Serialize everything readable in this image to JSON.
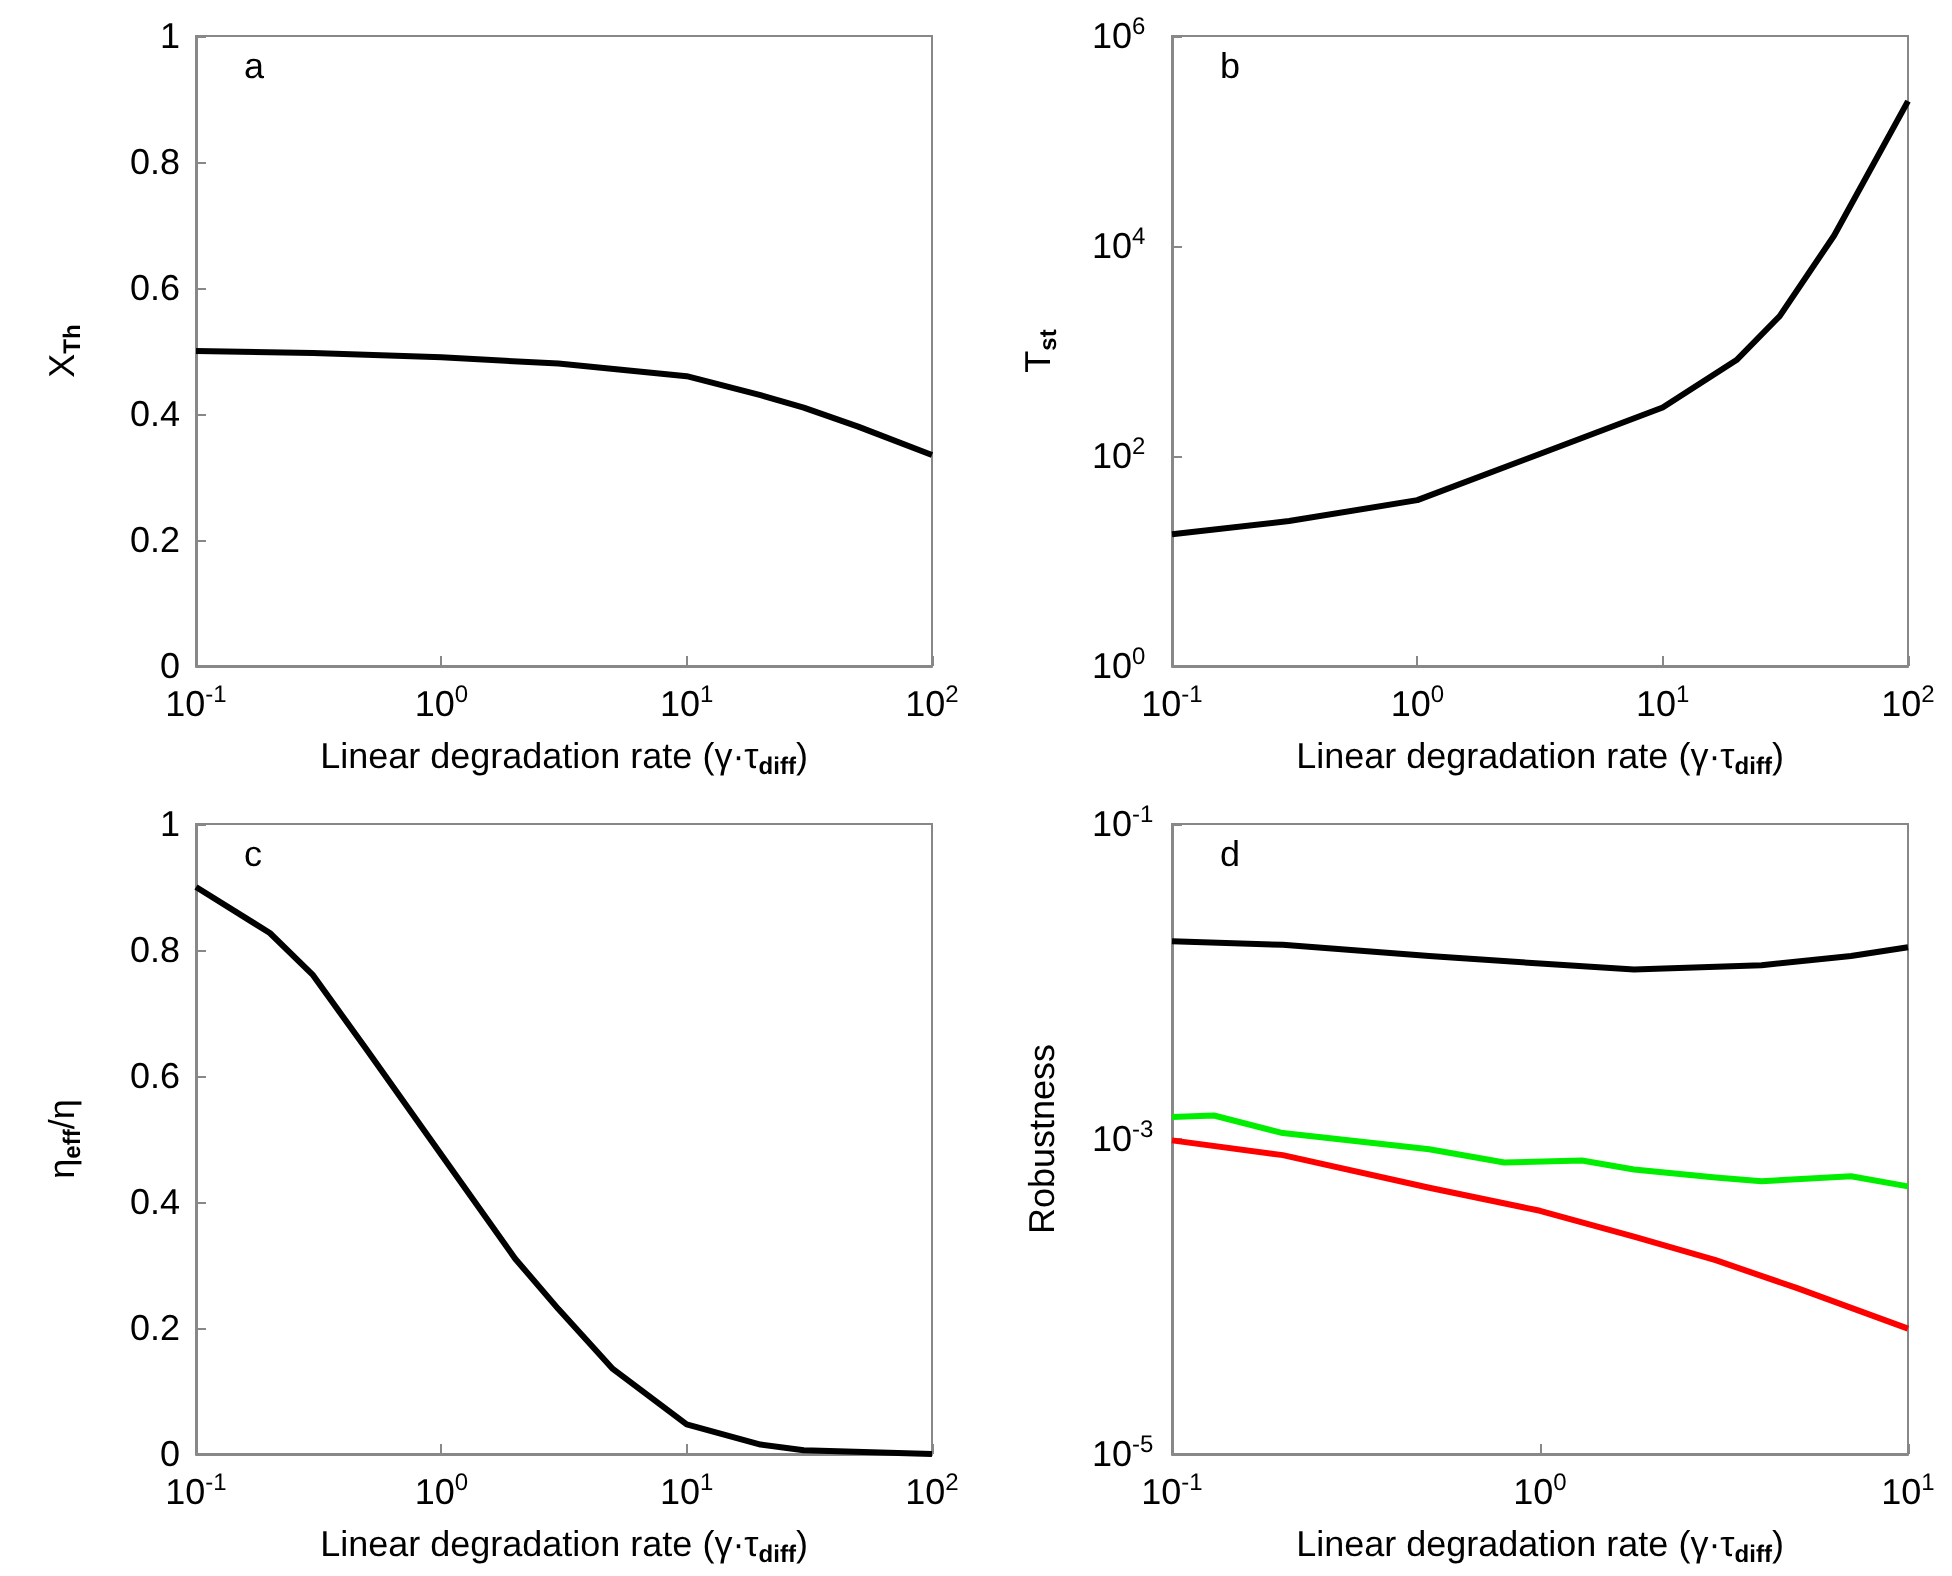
{
  "chart_data": [
    {
      "type": "line",
      "annotations": [
        "a"
      ],
      "xlabel": "Linear degradation rate (γ·τ$_{diff}$)",
      "ylabel": "X$_{Th}$",
      "log": "x",
      "marker": "none",
      "line_style": "solid",
      "xlim": [
        0.1,
        100
      ],
      "xticks": [
        {
          "value": 0.1,
          "label": "10$^{-1}$"
        },
        {
          "value": 1,
          "label": "10$^{0}$"
        },
        {
          "value": 10,
          "label": "10$^{1}$"
        },
        {
          "value": 100,
          "label": "10$^{2}$"
        }
      ],
      "ylim": [
        0,
        1
      ],
      "yticks": [
        0,
        0.2,
        0.4,
        0.6,
        0.8,
        1
      ],
      "x": [
        0.1,
        0.3,
        1,
        3,
        10,
        20,
        30,
        50,
        100
      ],
      "series": [
        {
          "color": "#000000",
          "values": [
            0.5,
            0.497,
            0.49,
            0.48,
            0.46,
            0.43,
            0.41,
            0.38,
            0.335
          ]
        }
      ]
    },
    {
      "type": "line",
      "annotations": [
        "b"
      ],
      "xlabel": "Linear degradation rate (γ·τ$_{diff}$)",
      "ylabel": "T$_{st}$",
      "log": "xy",
      "marker": "none",
      "line_style": "solid",
      "xlim": [
        0.1,
        100
      ],
      "xticks": [
        {
          "value": 0.1,
          "label": "10$^{-1}$"
        },
        {
          "value": 1,
          "label": "10$^{0}$"
        },
        {
          "value": 10,
          "label": "10$^{1}$"
        },
        {
          "value": 100,
          "label": "10$^{2}$"
        }
      ],
      "ylim": [
        1,
        1000000
      ],
      "yticks": [
        {
          "value": 1,
          "label": "10$^{0}$"
        },
        {
          "value": 100,
          "label": "10$^{2}$"
        },
        {
          "value": 10000,
          "label": "10$^{4}$"
        },
        {
          "value": 1000000,
          "label": "10$^{6}$"
        }
      ],
      "x": [
        0.1,
        0.3,
        1,
        3,
        10,
        20,
        30,
        50,
        100
      ],
      "series": [
        {
          "color": "#000000",
          "values": [
            18,
            24,
            38,
            100,
            290,
            820,
            2150,
            12600,
            240000
          ]
        }
      ]
    },
    {
      "type": "line",
      "annotations": [
        "c"
      ],
      "xlabel": "Linear degradation rate (γ·τ$_{diff}$)",
      "ylabel": "η$_{eff}$/η",
      "log": "x",
      "marker": "none",
      "line_style": "solid",
      "xlim": [
        0.1,
        100
      ],
      "xticks": [
        {
          "value": 0.1,
          "label": "10$^{-1}$"
        },
        {
          "value": 1,
          "label": "10$^{0}$"
        },
        {
          "value": 10,
          "label": "10$^{1}$"
        },
        {
          "value": 100,
          "label": "10$^{2}$"
        }
      ],
      "ylim": [
        0,
        1
      ],
      "yticks": [
        0,
        0.2,
        0.4,
        0.6,
        0.8,
        1
      ],
      "x": [
        0.1,
        0.2,
        0.3,
        0.5,
        1,
        2,
        3,
        5,
        10,
        20,
        30,
        100
      ],
      "series": [
        {
          "color": "#000000",
          "values": [
            0.9,
            0.827,
            0.76,
            0.64,
            0.475,
            0.31,
            0.23,
            0.135,
            0.047,
            0.015,
            0.006,
            0
          ]
        }
      ]
    },
    {
      "type": "line",
      "annotations": [
        "d"
      ],
      "xlabel": "Linear degradation rate (γ·τ$_{diff}$)",
      "ylabel": "Robustness",
      "log": "xy",
      "marker": "none",
      "line_style": "solid",
      "xlim": [
        0.1,
        10
      ],
      "xticks": [
        {
          "value": 0.1,
          "label": "10$^{-1}$"
        },
        {
          "value": 1,
          "label": "10$^{0}$"
        },
        {
          "value": 10,
          "label": "10$^{1}$"
        }
      ],
      "ylim": [
        1e-05,
        0.1
      ],
      "yticks": [
        {
          "value": 1e-05,
          "label": "10$^{-5}$"
        },
        {
          "value": 0.001,
          "label": "10$^{-3}$"
        },
        {
          "value": 0.1,
          "label": "10$^{-1}$"
        }
      ],
      "series": [
        {
          "color": "#000000",
          "x": [
            0.1,
            0.2,
            0.5,
            1,
            1.8,
            4,
            7,
            10
          ],
          "values": [
            0.018,
            0.0171,
            0.0145,
            0.013,
            0.0119,
            0.0127,
            0.0145,
            0.0165
          ]
        },
        {
          "color": "#00ee00",
          "x": [
            0.1,
            0.13,
            0.2,
            0.5,
            0.8,
            1.3,
            1.8,
            3,
            4,
            7,
            10
          ],
          "values": [
            0.00138,
            0.00141,
            0.00109,
            0.00086,
            0.00071,
            0.00073,
            0.00064,
            0.00057,
            0.00054,
            0.00058,
            0.0005
          ]
        },
        {
          "color": "#ff0000",
          "x": [
            0.1,
            0.2,
            0.5,
            1,
            1.8,
            3,
            5,
            10
          ],
          "values": [
            0.00098,
            0.00079,
            0.00049,
            0.00035,
            0.00024,
            0.00017,
            0.000113,
            6.25e-05
          ]
        }
      ]
    }
  ]
}
